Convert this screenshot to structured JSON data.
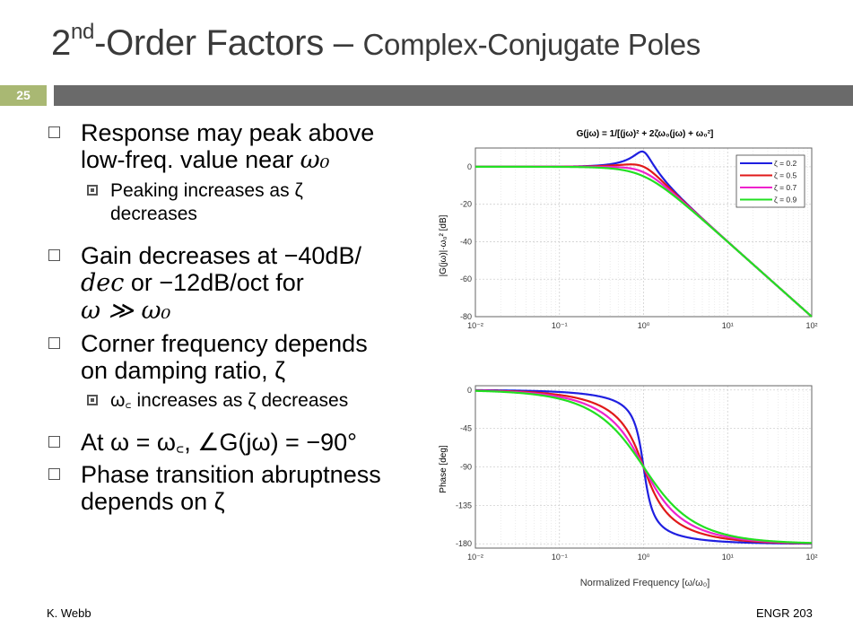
{
  "slide": {
    "title_main": "2nd-Order Factors",
    "title_sup": "nd",
    "title_dash": " – ",
    "title_sub": "Complex-Conjugate Poles",
    "slide_number": "25",
    "footer_left": "K. Webb",
    "footer_right": "ENGR 203"
  },
  "bullets": {
    "b1_line1": "Response may peak above",
    "b1_line2_text": "low-freq. value near ",
    "omega0": "ω₀",
    "b1_sub_text": "Peaking increases as ζ",
    "b1_sub_line2": "decreases",
    "b2_line1_text": "Gain decreases at −40dB/",
    "b2_line2_a": "dec",
    "b2_line2_b": " or −12dB/oct",
    "b2_line2_c": " for",
    "b2_line3": "ω ≫ ω₀",
    "b3_line1": "Corner frequency depends",
    "b3_line2": "on damping ratio, ζ",
    "b3_sub": "ω꜀ increases as ζ decreases",
    "b4": "At ω = ω꜀, ∠G(jω) = −90°",
    "b5_line1": "Phase transition abruptness",
    "b5_line2": "depends on ζ"
  },
  "chart_data": [
    {
      "type": "line",
      "title": "G(jω) = 1/[(jω)² + 2ζω₀(jω) + ω₀²]",
      "ylabel": "|G(jω)|·ω₀²  [dB]",
      "xlabel": "",
      "x_scale": "log",
      "xlim": [
        0.01,
        100
      ],
      "ylim": [
        -80,
        10
      ],
      "x_ticks": [
        "10⁻²",
        "10⁻¹",
        "10⁰",
        "10¹",
        "10²"
      ],
      "y_ticks": [
        "0",
        "-20",
        "-40",
        "-60",
        "-80"
      ],
      "grid": true,
      "legend_position": "top-right",
      "series": [
        {
          "name": "ζ = 0.2",
          "zeta": 0.2,
          "color": "#1f1fe0"
        },
        {
          "name": "ζ = 0.5",
          "zeta": 0.5,
          "color": "#e01919"
        },
        {
          "name": "ζ = 0.7",
          "zeta": 0.7,
          "color": "#ee22cc"
        },
        {
          "name": "ζ = 0.9",
          "zeta": 0.9,
          "color": "#22e022"
        }
      ]
    },
    {
      "type": "line",
      "title": "",
      "ylabel": "Phase   [deg]",
      "xlabel": "Normalized Frequency   [ω/ω₀]",
      "x_scale": "log",
      "xlim": [
        0.01,
        100
      ],
      "ylim": [
        -185,
        5
      ],
      "x_ticks": [
        "10⁻²",
        "10⁻¹",
        "10⁰",
        "10¹",
        "10²"
      ],
      "y_ticks": [
        "0",
        "-45",
        "-90",
        "-135",
        "-180"
      ],
      "grid": true,
      "series": [
        {
          "name": "ζ = 0.2",
          "zeta": 0.2,
          "color": "#1f1fe0"
        },
        {
          "name": "ζ = 0.5",
          "zeta": 0.5,
          "color": "#e01919"
        },
        {
          "name": "ζ = 0.7",
          "zeta": 0.7,
          "color": "#ee22cc"
        },
        {
          "name": "ζ = 0.9",
          "zeta": 0.9,
          "color": "#22e022"
        }
      ]
    }
  ]
}
